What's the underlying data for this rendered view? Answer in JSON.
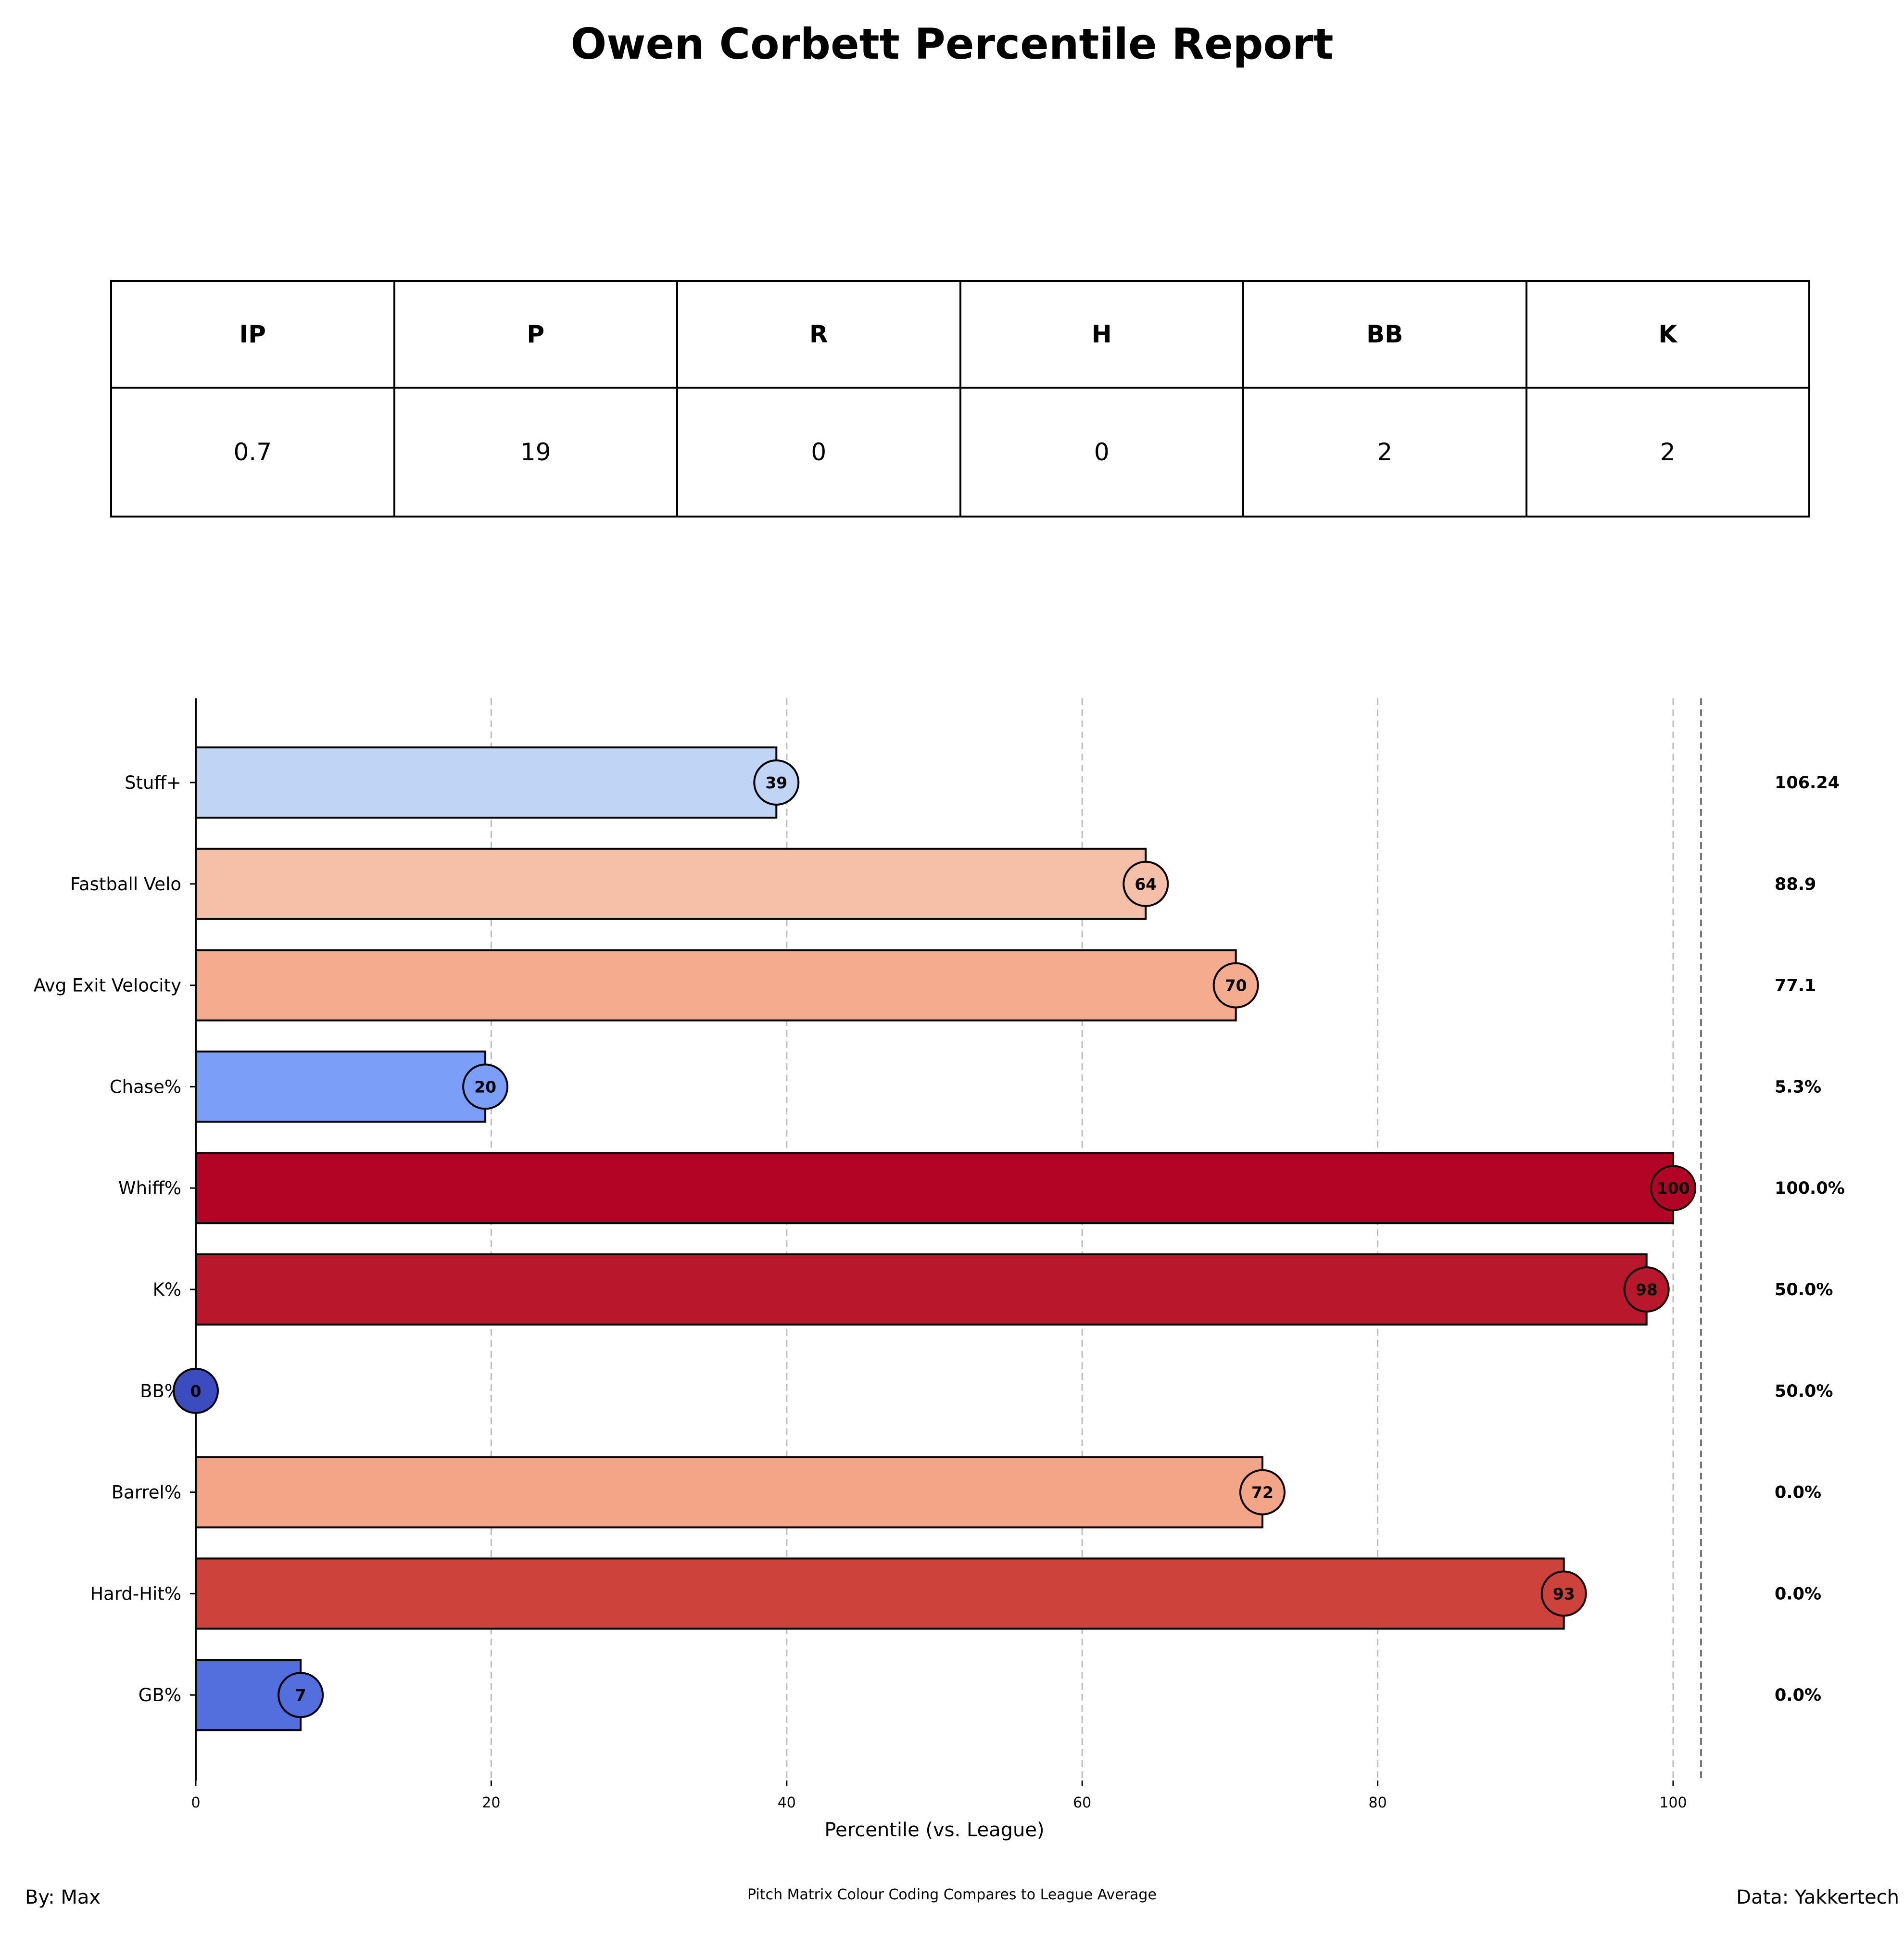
{
  "title": "Owen Corbett Percentile Report",
  "table": {
    "headers": [
      "IP",
      "P",
      "R",
      "H",
      "BB",
      "K"
    ],
    "values": [
      "0.7",
      "19",
      "0",
      "0",
      "2",
      "2"
    ]
  },
  "chart_data": {
    "type": "bar",
    "orientation": "horizontal",
    "xlabel": "Percentile (vs. League)",
    "xlim": [
      0,
      100
    ],
    "xticks": [
      "0",
      "20",
      "40",
      "60",
      "80",
      "100"
    ],
    "grid": "vertical dashed",
    "categories": [
      "Stuff+",
      "Fastball Velo",
      "Avg Exit Velocity",
      "Chase%",
      "Whiff%",
      "K%",
      "BB%",
      "Barrel%",
      "Hard-Hit%",
      "GB%"
    ],
    "values": [
      39.3,
      64.3,
      70.4,
      19.6,
      100,
      98.2,
      0,
      72.2,
      92.6,
      7.1
    ],
    "labels": [
      "39",
      "64",
      "70",
      "20",
      "100",
      "98",
      "0",
      "72",
      "93",
      "7"
    ],
    "raw_values": [
      "106.24",
      "88.9",
      "77.1",
      "5.3%",
      "100.0%",
      "50.0%",
      "50.0%",
      "0.0%",
      "0.0%",
      "0.0%"
    ],
    "colors": [
      "#c0d4f5",
      "#f5c0a7",
      "#f5ab8d",
      "#7b9ff9",
      "#b40426",
      "#b9172b",
      "#3b4cc0",
      "#f4a487",
      "#cd423b",
      "#536edd"
    ]
  },
  "footer": {
    "left": "By: Max",
    "center": "Pitch Matrix Colour Coding Compares to League Average",
    "right": "Data: Yakkertech"
  }
}
